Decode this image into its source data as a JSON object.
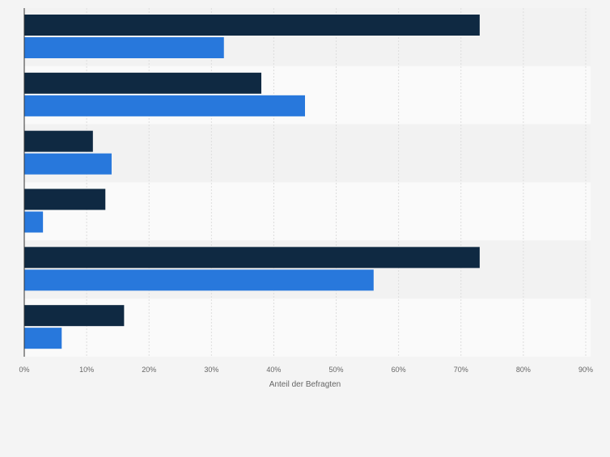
{
  "chart_data": {
    "type": "bar",
    "orientation": "horizontal",
    "categories": [
      "",
      "",
      "",
      "",
      "",
      ""
    ],
    "series": [
      {
        "values": [
          73,
          38,
          11,
          13,
          73,
          16
        ]
      },
      {
        "values": [
          32,
          45,
          14,
          3,
          56,
          6
        ]
      }
    ],
    "colors": [
      "#0f2942",
      "#2878dc"
    ],
    "xlabel": "Anteil der Befragten",
    "xlim": [
      0,
      90
    ],
    "xticks": [
      0,
      10,
      20,
      30,
      40,
      50,
      60,
      70,
      80,
      90
    ],
    "tick_suffix": "%",
    "grid": true,
    "legend": "none"
  }
}
